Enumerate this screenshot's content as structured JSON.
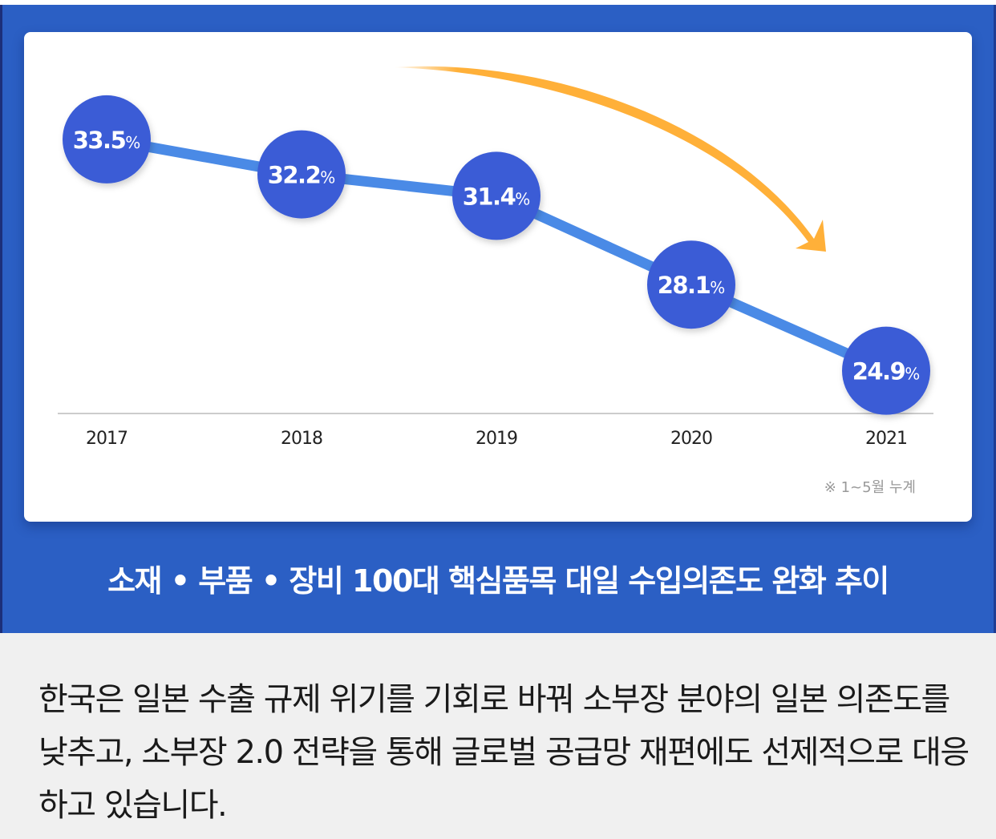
{
  "chart_data": {
    "type": "line",
    "title": "소재·부품·장비 100대 핵심품목 대일 수입의존도 완화 추이",
    "categories": [
      "2017",
      "2018",
      "2019",
      "2020",
      "2021"
    ],
    "series": [
      {
        "name": "대일 수입의존도",
        "values": [
          33.5,
          32.2,
          31.4,
          28.1,
          24.9
        ],
        "unit": "%"
      }
    ],
    "data_labels": [
      "33.5",
      "32.2",
      "31.4",
      "28.1",
      "24.9"
    ],
    "label_suffix": "%",
    "xlabel": "",
    "ylabel": "",
    "ylim": [
      22,
      36
    ],
    "grid": false,
    "legend": "none",
    "annotation": "downward trend arrow (top-right)",
    "note": "※ 1~5월 누계"
  },
  "colors": {
    "panel": "#2b5fc4",
    "marker": "#3b5bd6",
    "line": "#4a8ae6",
    "arrow": "#ffb039",
    "axis": "#cccccc",
    "tick_text": "#222222",
    "note_text": "#999999",
    "background": "#f0f0f0"
  },
  "caption": "소재 • 부품 • 장비 100대 핵심품목 대일 수입의존도 완화 추이",
  "body_text": "한국은 일본 수출 규제 위기를 기회로 바꿔 소부장 분야의 일본 의존도를 낮추고, 소부장 2.0 전략을 통해 글로벌 공급망 재편에도 선제적으로 대응하고 있습니다."
}
